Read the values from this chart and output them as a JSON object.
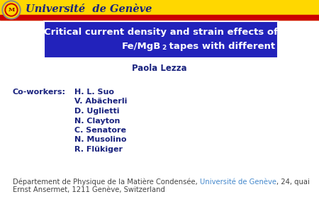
{
  "bg_color": "#ffffff",
  "header_bar_yellow": "#FFD700",
  "header_bar_red": "#CC0000",
  "title_box_color": "#2222bb",
  "title_color": "#ffffff",
  "unige_text": "Université  de Genève",
  "unige_color": "#1a237e",
  "author": "Paola Lezza",
  "author_color": "#1a237e",
  "coworkers_label": "Co-workers:",
  "coworkers_color": "#1a237e",
  "coworkers": [
    "H. L. Suo",
    "V. Abächerli",
    "D. Uglietti",
    "N. Clayton",
    "C. Senatore",
    "N. Musolino",
    "R. Flükiger"
  ],
  "dept_text1": "Département de Physique de la Matière Condensée, ",
  "dept_unige": "Université de Genève",
  "dept_text2": ", 24, quai",
  "dept_line2": "Ernst Ansermet, 1211 Genève, Switzerland",
  "dept_color": "#444444",
  "dept_unige_color": "#4488cc"
}
